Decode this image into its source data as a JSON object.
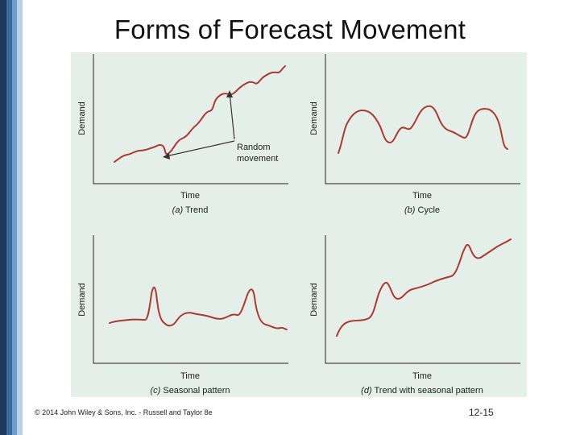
{
  "slide": {
    "title": "Forms of Forecast Movement",
    "footer_left": "© 2014 John Wiley & Sons, Inc. - Russell and Taylor 8e",
    "page_number": "12-15"
  },
  "panels": {
    "trend": {
      "y_label": "Demand",
      "x_label": "Time",
      "caption_letter": "(a)",
      "caption_text": " Trend",
      "annotation_line1": "Random",
      "annotation_line2": "movement"
    },
    "cycle": {
      "y_label": "Demand",
      "x_label": "Time",
      "caption_letter": "(b)",
      "caption_text": " Cycle"
    },
    "seasonal": {
      "y_label": "Demand",
      "x_label": "Time",
      "caption_letter": "(c)",
      "caption_text": " Seasonal pattern"
    },
    "trend_seasonal": {
      "y_label": "Demand",
      "x_label": "Time",
      "caption_letter": "(d)",
      "caption_text": " Trend with seasonal pattern"
    }
  },
  "colors": {
    "curve": "#b0392c",
    "panel_background": "#e4efea",
    "sidebar": [
      "#1f3a5f",
      "#3a6a9a",
      "#6f9ccc",
      "#b9d0e6"
    ]
  }
}
